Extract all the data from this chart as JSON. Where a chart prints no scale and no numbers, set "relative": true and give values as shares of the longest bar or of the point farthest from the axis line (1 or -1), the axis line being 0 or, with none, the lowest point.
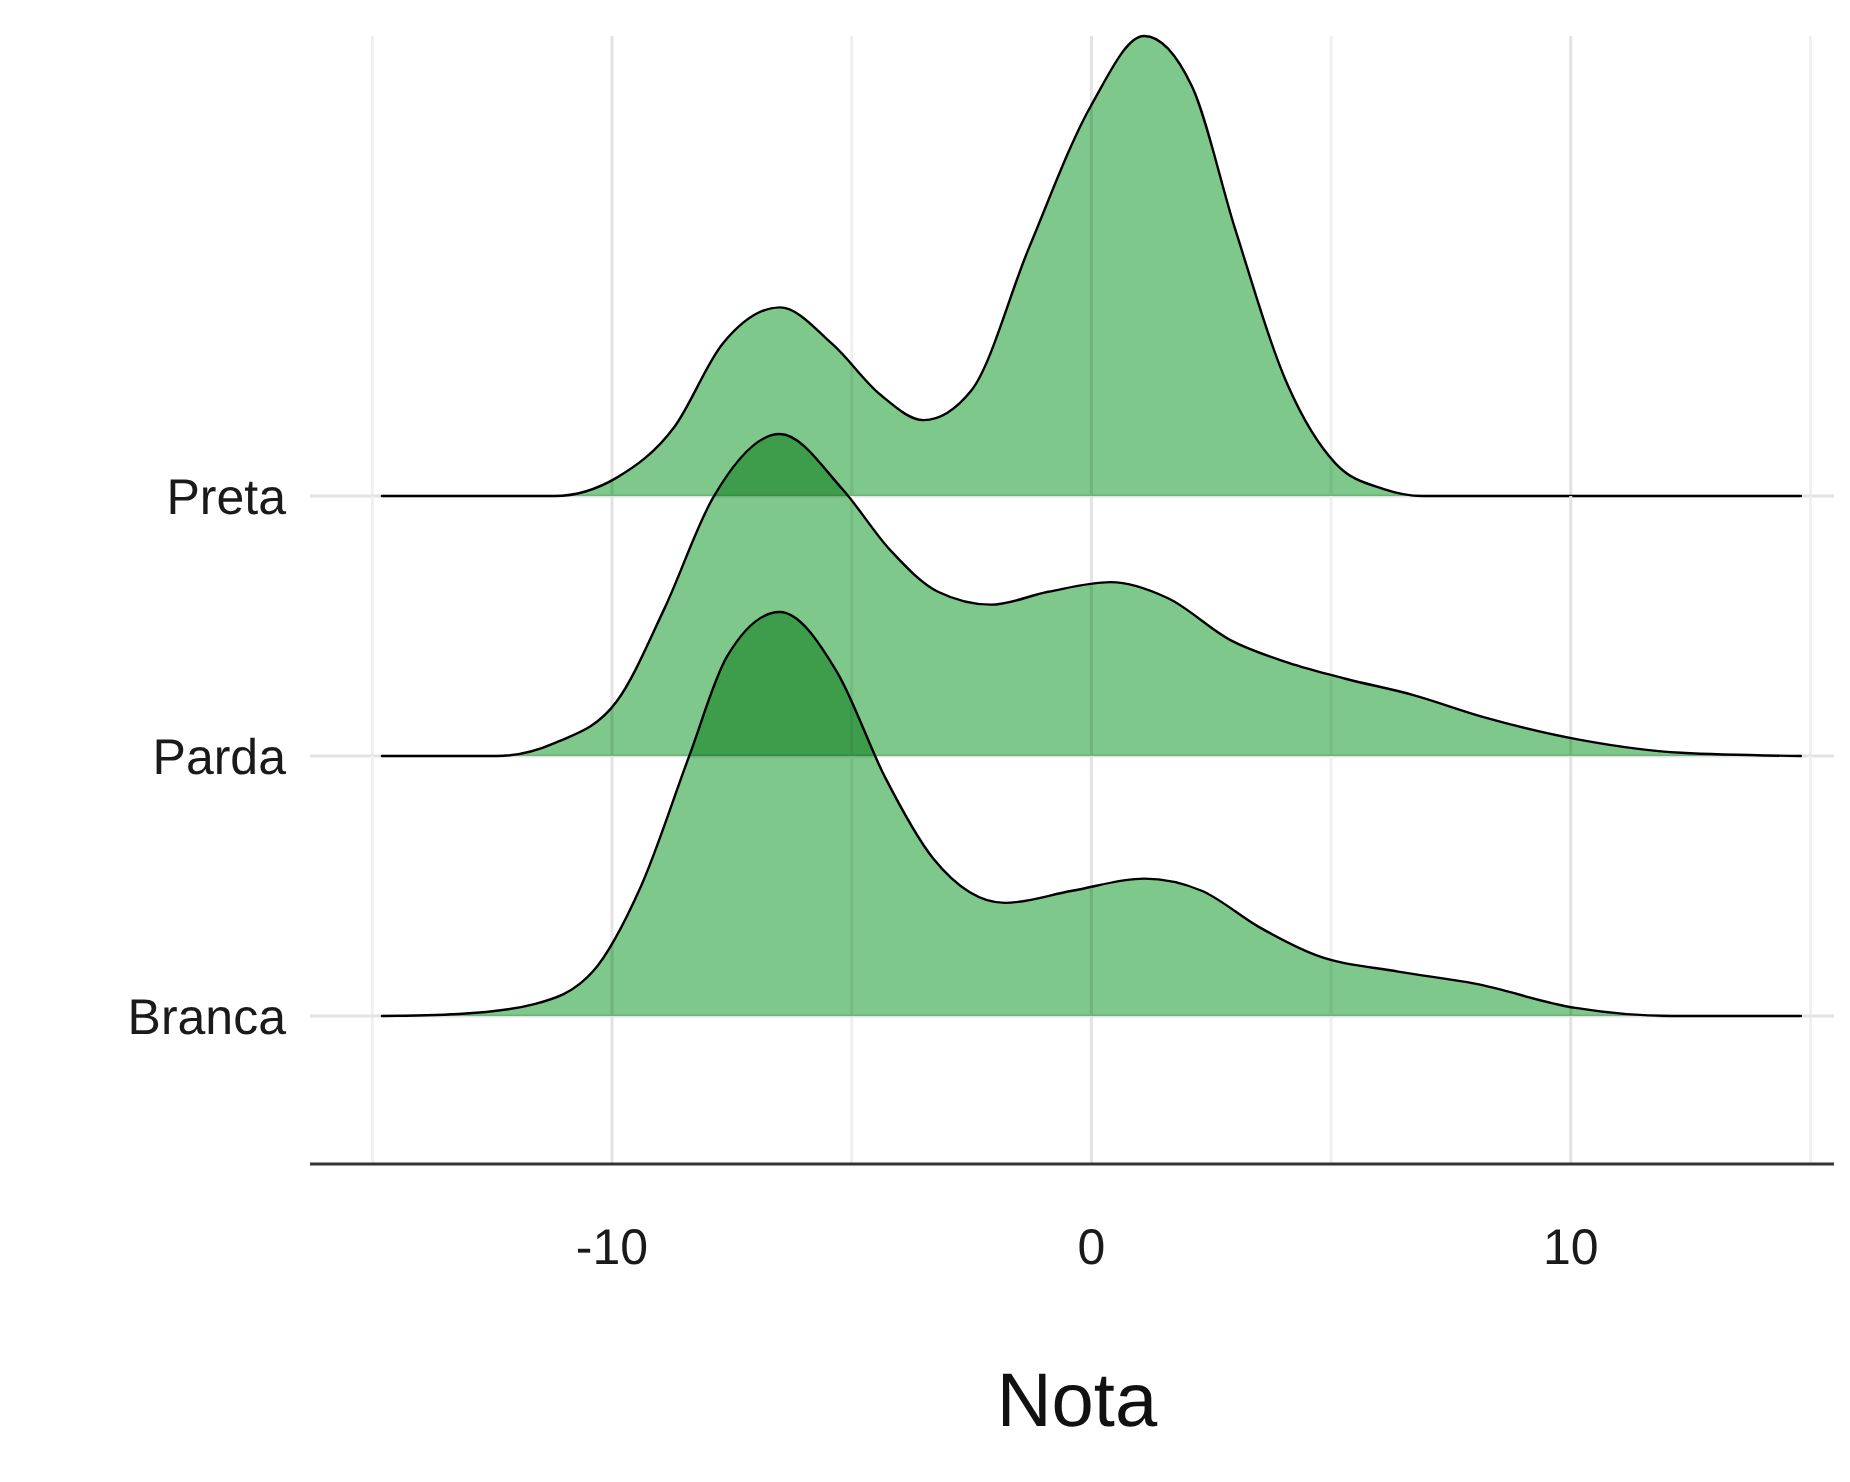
{
  "chart_data": [
    {
      "type": "area",
      "relative": true,
      "xlim": [
        -16.3,
        15.7
      ],
      "xticks": [
        {
          "value": -15,
          "label": null
        },
        -10,
        {
          "value": -5,
          "label": null
        },
        0,
        {
          "value": 5,
          "label": null
        },
        10,
        {
          "value": 15,
          "label": null
        }
      ],
      "grid": "x",
      "tick_labels": false,
      "series": [
        {
          "name": "Preta",
          "color": "#7dc88a",
          "x": [
            -14.8,
            -11.2,
            -9.9,
            -8.7,
            -7.7,
            -6.5,
            -5.4,
            -4.4,
            -3.5,
            -2.5,
            -1.3,
            0,
            1.1,
            2.1,
            3.0,
            4.1,
            5.1,
            6.1,
            6.9,
            14.8
          ],
          "values": [
            0,
            0,
            0.04,
            0.15,
            0.33,
            0.41,
            0.33,
            0.22,
            0.165,
            0.23,
            0.54,
            0.85,
            1.0,
            0.89,
            0.58,
            0.24,
            0.07,
            0.015,
            0,
            0
          ]
        }
      ]
    },
    {
      "type": "area",
      "relative": true,
      "xlim": [
        -16.3,
        15.7
      ],
      "xticks": [
        {
          "value": -15,
          "label": null
        },
        -10,
        {
          "value": -5,
          "label": null
        },
        0,
        {
          "value": 5,
          "label": null
        },
        10,
        {
          "value": 15,
          "label": null
        }
      ],
      "grid": "x",
      "tick_labels": false,
      "series": [
        {
          "name": "Parda",
          "color": "#7dc88a",
          "x": [
            -14.8,
            -12.4,
            -11.2,
            -9.9,
            -8.9,
            -7.9,
            -6.5,
            -5.2,
            -4.2,
            -3.2,
            -2.1,
            -0.9,
            0.4,
            1.6,
            2.9,
            4.1,
            5.3,
            6.7,
            8.2,
            10.2,
            12.3,
            14.8
          ],
          "values": [
            0,
            0,
            0.04,
            0.17,
            0.46,
            0.8,
            1,
            0.83,
            0.64,
            0.51,
            0.47,
            0.51,
            0.54,
            0.49,
            0.36,
            0.29,
            0.24,
            0.19,
            0.12,
            0.05,
            0.01,
            0
          ]
        }
      ]
    },
    {
      "type": "area",
      "relative": true,
      "xlabel": "Nota",
      "xlim": [
        -16.3,
        15.7
      ],
      "xticks": [
        {
          "value": -15,
          "label": null
        },
        -10,
        {
          "value": -5,
          "label": null
        },
        0,
        {
          "value": 5,
          "label": null
        },
        10,
        {
          "value": 15,
          "label": null
        }
      ],
      "grid": "x",
      "tick_labels": "x",
      "series": [
        {
          "name": "Branca",
          "color": "#7dc88a",
          "x": [
            -14.8,
            -13.2,
            -11.6,
            -10.4,
            -9.4,
            -8.4,
            -7.6,
            -6.5,
            -5.3,
            -4.3,
            -3.3,
            -1.8,
            -0.4,
            1.1,
            2.3,
            3.5,
            4.7,
            6.4,
            8.0,
            10.1,
            12.1,
            14.8
          ],
          "values": [
            0,
            0.005,
            0.03,
            0.11,
            0.32,
            0.64,
            0.89,
            1,
            0.85,
            0.59,
            0.39,
            0.28,
            0.31,
            0.34,
            0.31,
            0.22,
            0.15,
            0.11,
            0.08,
            0.02,
            0,
            0
          ]
        }
      ]
    }
  ]
}
